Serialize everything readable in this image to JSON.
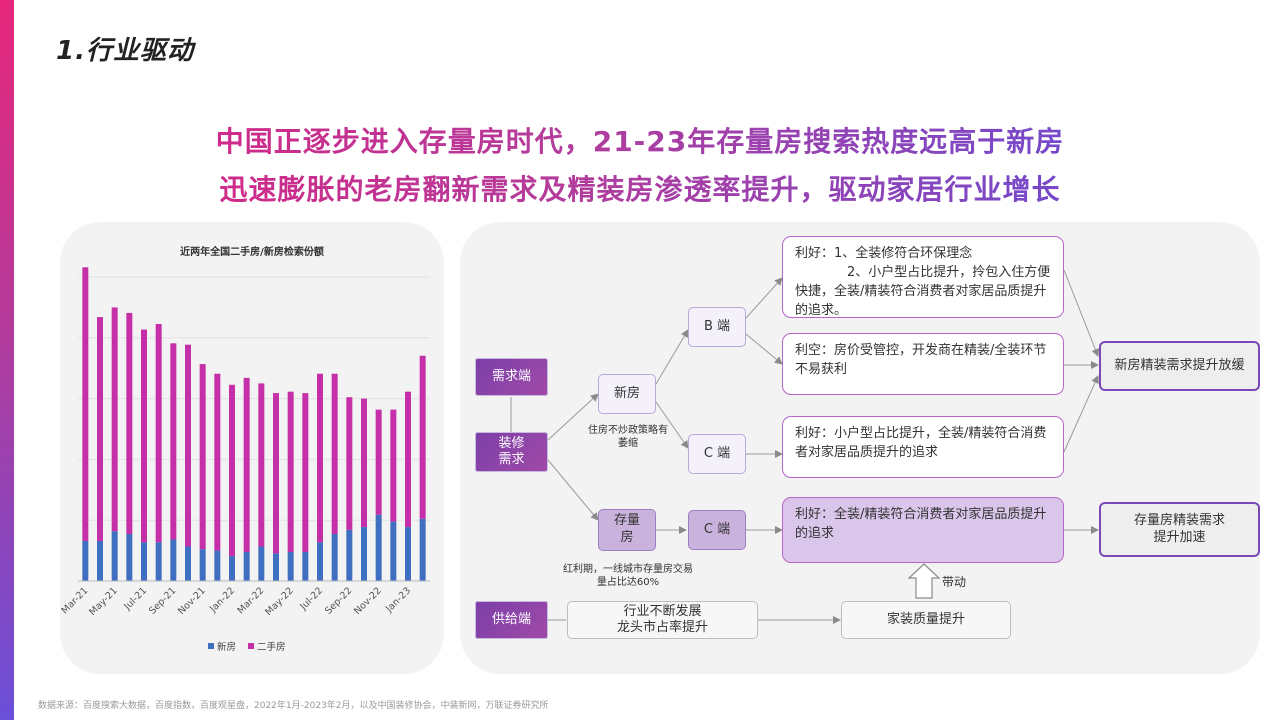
{
  "page": {
    "section_title": "1.行业驱动",
    "headline_line1": "中国正逐步进入存量房时代，21-23年存量房搜索热度远高于新房",
    "headline_line2": "迅速膨胀的老房翻新需求及精装房渗透率提升，驱动家居行业增长",
    "source": "数据来源：百度搜索大数据，百度指数，百度观星盘，2022年1月-2023年2月，以及中国装修协会，中装新网，万联证券研究所"
  },
  "colors": {
    "new_house": "#3f6fc0",
    "second_hand": "#c530a8",
    "accent_purple": "#7a48b8"
  },
  "chart_data": {
    "type": "bar",
    "stacked": true,
    "title": "近两年全国二手房/新房检索份额",
    "categories": [
      "Mar-21",
      "Apr-21",
      "May-21",
      "Jun-21",
      "Jul-21",
      "Aug-21",
      "Sep-21",
      "Oct-21",
      "Nov-21",
      "Dec-21",
      "Jan-22",
      "Feb-22",
      "Mar-22",
      "Apr-22",
      "May-22",
      "Jun-22",
      "Jul-22",
      "Aug-22",
      "Sep-22",
      "Oct-22",
      "Nov-22",
      "Dec-22",
      "Jan-23",
      "Feb-23"
    ],
    "tick_labels": [
      "Mar-21",
      "May-21",
      "Jul-21",
      "Sep-21",
      "Nov-21",
      "Jan-22",
      "Mar-22",
      "May-22",
      "Jul-22",
      "Sep-22",
      "Nov-22",
      "Jan-23"
    ],
    "series": [
      {
        "name": "新房",
        "values": [
          0.145,
          0.145,
          0.18,
          0.17,
          0.14,
          0.14,
          0.15,
          0.125,
          0.115,
          0.11,
          0.09,
          0.105,
          0.125,
          0.1,
          0.105,
          0.105,
          0.14,
          0.17,
          0.185,
          0.195,
          0.24,
          0.215,
          0.195,
          0.225
        ]
      },
      {
        "name": "二手房",
        "values": [
          0.99,
          0.81,
          0.81,
          0.8,
          0.77,
          0.79,
          0.71,
          0.73,
          0.67,
          0.64,
          0.62,
          0.63,
          0.59,
          0.58,
          0.58,
          0.575,
          0.61,
          0.58,
          0.48,
          0.465,
          0.38,
          0.405,
          0.49,
          0.59
        ]
      }
    ],
    "legend": [
      "新房",
      "二手房"
    ],
    "legend_position": "bottom",
    "grid": true
  },
  "flow": {
    "demand_side": "需求端",
    "renovation_demand": "装修需求",
    "supply_side": "供给端",
    "new_house": "新房",
    "new_house_note": "住房不炒政策略有萎缩",
    "stock_house": "存量房",
    "stock_note": "红利期，一线城市存量房交易量占比达60%",
    "b_end": "B 端",
    "c_end_1": "C 端",
    "c_end_2": "C 端",
    "note_b_good": "利好：1、全装修符合环保理念\n　　　　2、小户型占比提升，拎包入住方便快捷，全装/精装符合消费者对家居品质提升的追求。",
    "note_b_bad": "利空：房价受管控，开发商在精装/全装环节不易获利",
    "note_c_good": "利好：小户型占比提升，全装/精装符合消费者对家居品质提升的追求",
    "note_stock_good": "利好：全装/精装符合消费者对家居品质提升的追求",
    "result_new": "新房精装需求提升放缓",
    "result_stock": "存量房精装需求提升加速",
    "industry_dev": "行业不断发展\n龙头市占率提升",
    "quality_up": "家装质量提升",
    "drive_label": "带动"
  }
}
